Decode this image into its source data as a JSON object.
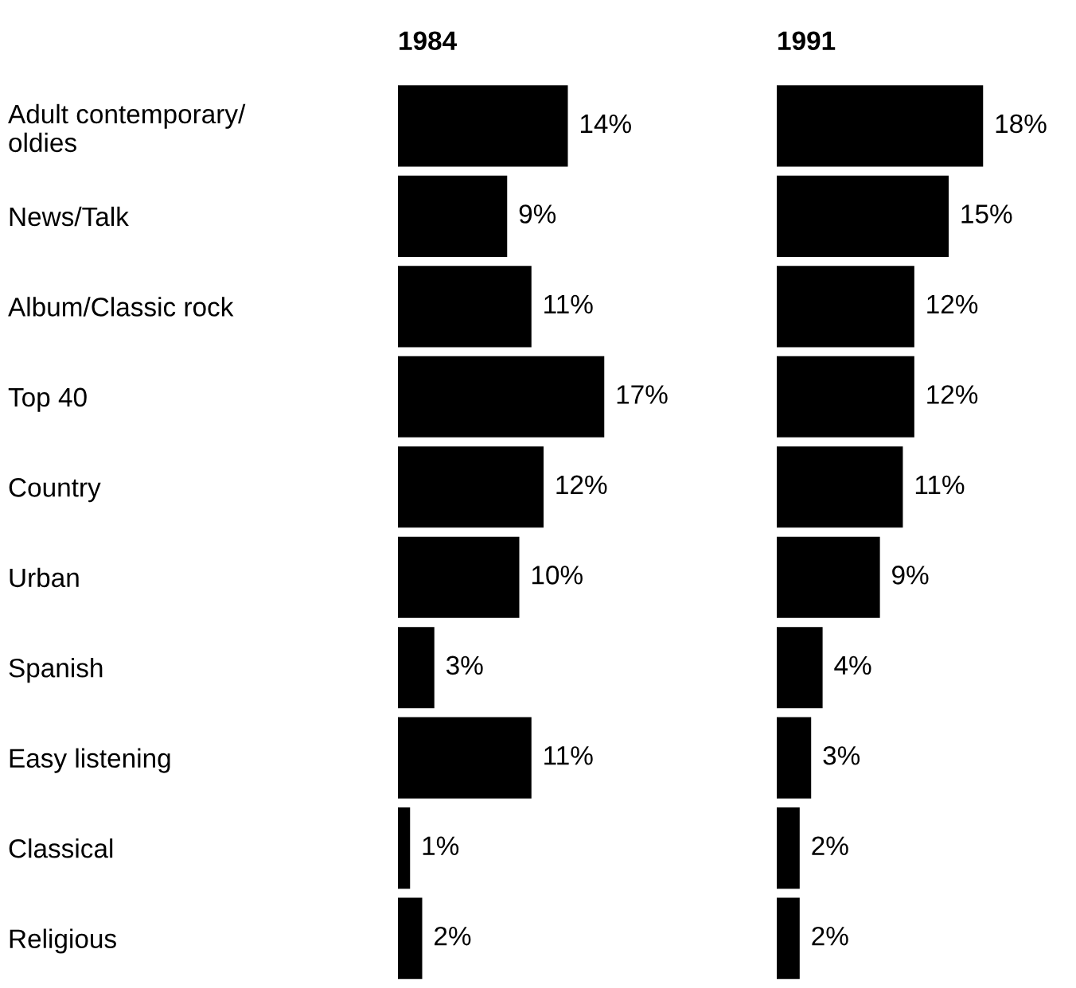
{
  "chart_data": [
    {
      "type": "bar",
      "orientation": "horizontal",
      "title": "1984",
      "categories": [
        "Adult contemporary/\noldies",
        "News/Talk",
        "Album/Classic rock",
        "Top 40",
        "Country",
        "Urban",
        "Spanish",
        "Easy listening",
        "Classical",
        "Religious"
      ],
      "values": [
        14,
        9,
        11,
        17,
        12,
        10,
        3,
        11,
        1,
        2
      ],
      "value_labels": [
        "14%",
        "9%",
        "11%",
        "17%",
        "12%",
        "10%",
        "3%",
        "11%",
        "1%",
        "2%"
      ],
      "color": "#000000",
      "tick_labels": "y"
    },
    {
      "type": "bar",
      "orientation": "horizontal",
      "title": "1991",
      "categories": [
        null,
        null,
        null,
        null,
        null,
        null,
        null,
        null,
        null,
        null
      ],
      "values": [
        18,
        15,
        12,
        12,
        11,
        9,
        4,
        3,
        2,
        2
      ],
      "value_labels": [
        "18%",
        "15%",
        "12%",
        "12%",
        "11%",
        "9%",
        "4%",
        "3%",
        "2%",
        "2%"
      ],
      "color": "#000000",
      "tick_labels": false
    }
  ]
}
